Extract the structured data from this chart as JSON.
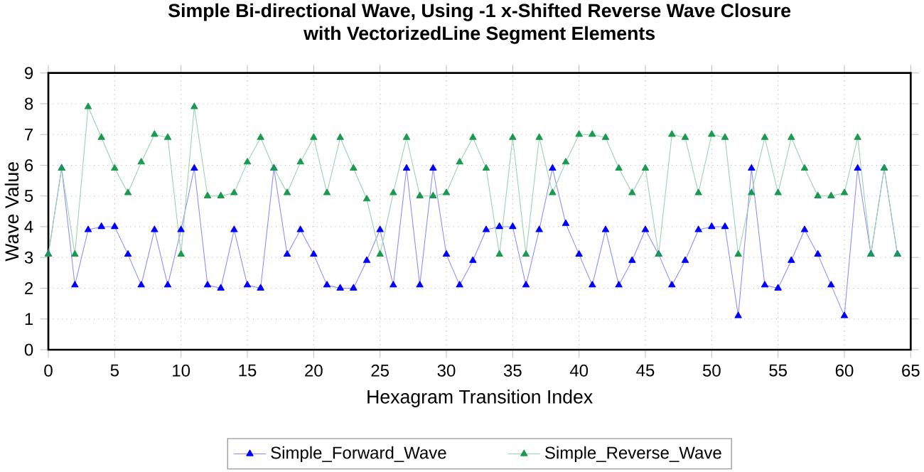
{
  "chart_data": {
    "type": "line",
    "title": "Simple Bi-directional Wave, Using -1 x-Shifted Reverse Wave Closure\nwith VectorizedLine Segment Elements",
    "xlabel": "Hexagram Transition Index",
    "ylabel": "Wave Value",
    "x": [
      0,
      1,
      2,
      3,
      4,
      5,
      6,
      7,
      8,
      9,
      10,
      11,
      12,
      13,
      14,
      15,
      16,
      17,
      18,
      19,
      20,
      21,
      22,
      23,
      24,
      25,
      26,
      27,
      28,
      29,
      30,
      31,
      32,
      33,
      34,
      35,
      36,
      37,
      38,
      39,
      40,
      41,
      42,
      43,
      44,
      45,
      46,
      47,
      48,
      49,
      50,
      51,
      52,
      53,
      54,
      55,
      56,
      57,
      58,
      59,
      60,
      61,
      62,
      63,
      64
    ],
    "series": [
      {
        "name": "Simple_Forward_Wave",
        "color": "#0000ff",
        "values": [
          3.1,
          5.9,
          2.1,
          3.9,
          4.0,
          4.0,
          3.1,
          2.1,
          3.9,
          2.1,
          3.9,
          5.9,
          2.1,
          2.0,
          3.9,
          2.1,
          2.0,
          5.9,
          3.1,
          3.9,
          3.1,
          2.1,
          2.0,
          2.0,
          2.9,
          3.9,
          2.1,
          5.9,
          2.1,
          5.9,
          3.1,
          2.1,
          2.9,
          3.9,
          4.0,
          4.0,
          2.1,
          3.9,
          5.9,
          4.1,
          3.1,
          2.1,
          3.9,
          2.1,
          2.9,
          3.9,
          3.1,
          2.1,
          2.9,
          3.9,
          4.0,
          4.0,
          1.1,
          5.9,
          2.1,
          2.0,
          2.9,
          3.9,
          3.1,
          2.1,
          1.1,
          5.9,
          3.1,
          5.9,
          3.1
        ]
      },
      {
        "name": "Simple_Reverse_Wave",
        "color": "#1a9a50",
        "values": [
          3.1,
          5.9,
          3.1,
          7.9,
          6.9,
          5.9,
          5.1,
          6.1,
          7.0,
          6.9,
          3.1,
          7.9,
          5.0,
          5.0,
          5.1,
          6.1,
          6.9,
          5.9,
          5.1,
          6.1,
          6.9,
          5.1,
          6.9,
          5.9,
          4.9,
          3.1,
          5.1,
          6.9,
          5.0,
          5.0,
          5.1,
          6.1,
          6.9,
          5.9,
          3.1,
          6.9,
          3.1,
          6.9,
          5.1,
          6.1,
          7.0,
          7.0,
          6.9,
          5.9,
          5.1,
          5.9,
          3.1,
          7.0,
          6.9,
          5.1,
          7.0,
          6.9,
          3.1,
          5.1,
          6.9,
          5.1,
          6.9,
          5.9,
          5.0,
          5.0,
          5.1,
          6.9,
          3.1,
          5.9,
          3.1
        ]
      }
    ],
    "xlim": [
      0,
      65
    ],
    "xticks": [
      0,
      5,
      10,
      15,
      20,
      25,
      30,
      35,
      40,
      45,
      50,
      55,
      60,
      65
    ],
    "ylim": [
      0,
      9
    ],
    "yticks": [
      0,
      1,
      2,
      3,
      4,
      5,
      6,
      7,
      8,
      9
    ],
    "grid": true,
    "legend": "bottom",
    "marker": "triangle",
    "line_style": "solid"
  }
}
